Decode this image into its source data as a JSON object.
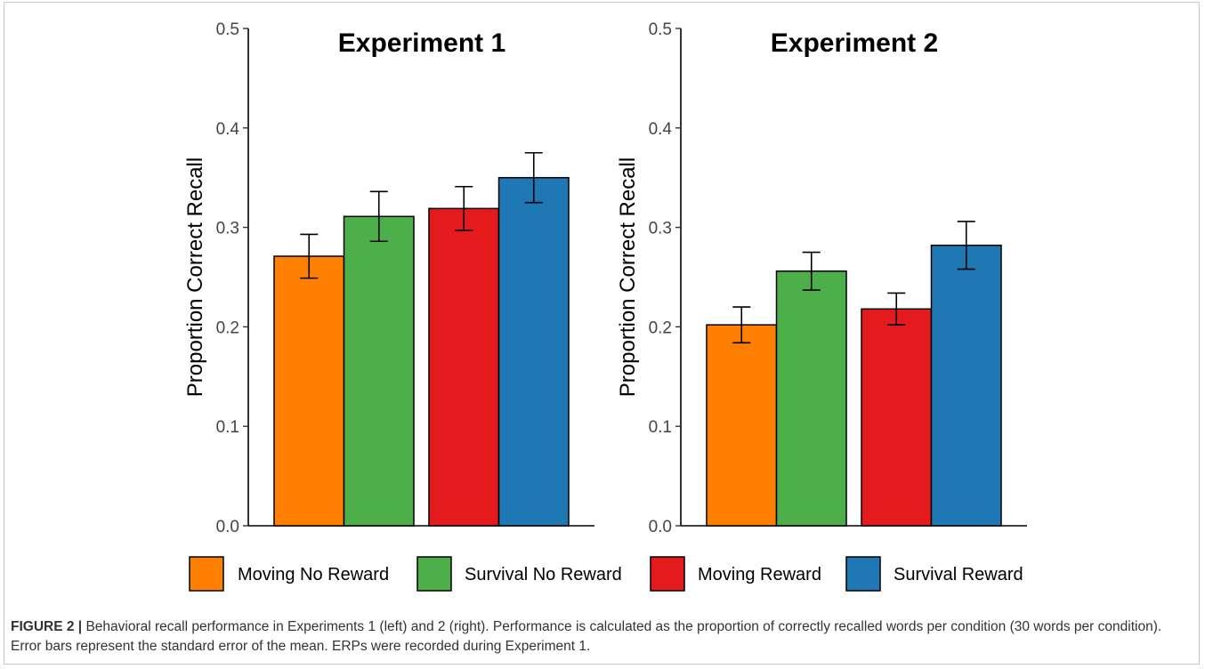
{
  "chart_data": [
    {
      "type": "bar",
      "title": "Experiment 1",
      "ylabel": "Proportion Correct Recall",
      "xlabel": "",
      "ylim": [
        0,
        0.5
      ],
      "yticks": [
        0.0,
        0.1,
        0.2,
        0.3,
        0.4,
        0.5
      ],
      "yticklabels": [
        "0.0",
        "0.1",
        "0.2",
        "0.3",
        "0.4",
        "0.5"
      ],
      "groups": [
        [
          "Moving No Reward",
          "Survival No Reward"
        ],
        [
          "Moving Reward",
          "Survival Reward"
        ]
      ],
      "series": [
        {
          "name": "Moving No Reward",
          "value": 0.271,
          "se": 0.022
        },
        {
          "name": "Survival No Reward",
          "value": 0.311,
          "se": 0.025
        },
        {
          "name": "Moving Reward",
          "value": 0.319,
          "se": 0.022
        },
        {
          "name": "Survival Reward",
          "value": 0.35,
          "se": 0.025
        }
      ]
    },
    {
      "type": "bar",
      "title": "Experiment 2",
      "ylabel": "Proportion Correct Recall",
      "xlabel": "",
      "ylim": [
        0,
        0.5
      ],
      "yticks": [
        0.0,
        0.1,
        0.2,
        0.3,
        0.4,
        0.5
      ],
      "yticklabels": [
        "0.0",
        "0.1",
        "0.2",
        "0.3",
        "0.4",
        "0.5"
      ],
      "groups": [
        [
          "Moving No Reward",
          "Survival No Reward"
        ],
        [
          "Moving Reward",
          "Survival Reward"
        ]
      ],
      "series": [
        {
          "name": "Moving No Reward",
          "value": 0.202,
          "se": 0.018
        },
        {
          "name": "Survival No Reward",
          "value": 0.256,
          "se": 0.019
        },
        {
          "name": "Moving Reward",
          "value": 0.218,
          "se": 0.016
        },
        {
          "name": "Survival Reward",
          "value": 0.282,
          "se": 0.024
        }
      ]
    }
  ],
  "legend": {
    "placement": "bottom",
    "items": [
      {
        "label": "Moving No Reward",
        "color": "#ff7f00"
      },
      {
        "label": "Survival No Reward",
        "color": "#4daf4a"
      },
      {
        "label": "Moving Reward",
        "color": "#e41a1c"
      },
      {
        "label": "Survival Reward",
        "color": "#1f78b4"
      }
    ]
  },
  "caption": {
    "label": "FIGURE 2 |",
    "text": "Behavioral recall performance in Experiments 1 (left) and 2 (right). Performance is calculated as the proportion of correctly recalled words per condition (30 words per condition). Error bars represent the standard error of the mean. ERPs were recorded during Experiment 1."
  }
}
